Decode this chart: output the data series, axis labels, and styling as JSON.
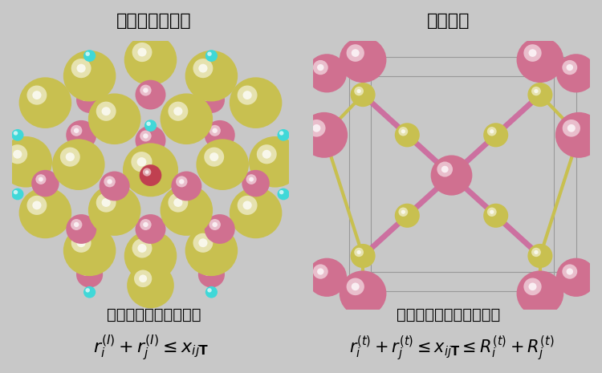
{
  "bg_color": "#c8c8c8",
  "panel_bg": "#ffffff",
  "title_left": "最密球充填構造",
  "title_right": "化学結合",
  "label_left": "陰イオン間の最小距離",
  "label_right": "原子間の最大・最小距離",
  "formula_left": "$r_i^{(I)} + r_j^{(I)} \\leq x_{ij\\mathbf{T}}$",
  "formula_right": "$r_i^{(t)} + r_j^{(t)} \\leq x_{ij\\mathbf{T}} \\leq R_i^{(t)} + R_j^{(t)}$",
  "title_fontsize": 16,
  "label_fontsize": 14,
  "formula_fontsize": 13,
  "fig_width": 7.5,
  "fig_height": 4.65,
  "dpi": 100,
  "yellow": "#c8c050",
  "yellow_hi": "#e8e080",
  "pink_sphere": "#d07090",
  "pink_hi": "#f0b0c0",
  "red_center": "#c04050",
  "cyan": "#40d8d8",
  "gray_bg": "#c8c8c8",
  "white": "#ffffff",
  "bond_pink": "#cc70a0",
  "bond_yellow": "#c8c050",
  "cube_line": "#999999"
}
